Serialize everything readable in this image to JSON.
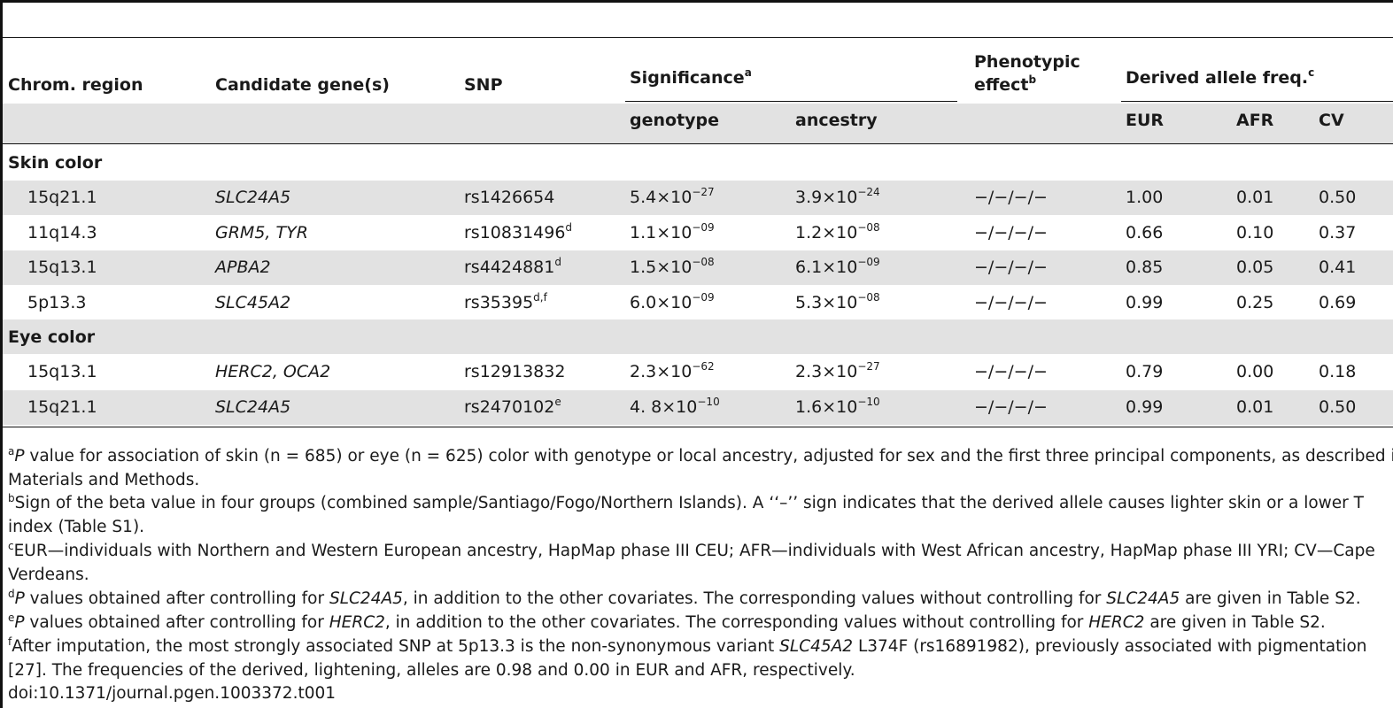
{
  "table": {
    "headers": {
      "chrom_region": "Chrom. region",
      "candidate_genes": "Candidate gene(s)",
      "snp": "SNP",
      "significance": "Significance",
      "significance_sup": "a",
      "phenotypic_line1": "Phenotypic",
      "phenotypic_line2": "effect",
      "phenotypic_sup": "b",
      "derived_allele": "Derived allele freq.",
      "derived_allele_sup": "c",
      "genotype": "genotype",
      "ancestry": "ancestry",
      "eur": "EUR",
      "afr": "AFR",
      "cv": "CV"
    },
    "sections": [
      {
        "title": "Skin color",
        "rows": [
          {
            "region": "15q21.1",
            "gene": "SLC24A5",
            "snp": "rs1426654",
            "snp_sup": "",
            "gen_mant": "5.4",
            "gen_exp": "−27",
            "anc_mant": "3.9",
            "anc_exp": "−24",
            "effect": "−/−/−/−",
            "eur": "1.00",
            "afr": "0.01",
            "cv": "0.50"
          },
          {
            "region": "11q14.3",
            "gene": "GRM5, TYR",
            "snp": "rs10831496",
            "snp_sup": "d",
            "gen_mant": "1.1",
            "gen_exp": "−09",
            "anc_mant": "1.2",
            "anc_exp": "−08",
            "effect": "−/−/−/−",
            "eur": "0.66",
            "afr": "0.10",
            "cv": "0.37"
          },
          {
            "region": "15q13.1",
            "gene": "APBA2",
            "snp": "rs4424881",
            "snp_sup": "d",
            "gen_mant": "1.5",
            "gen_exp": "−08",
            "anc_mant": "6.1",
            "anc_exp": "−09",
            "effect": "−/−/−/−",
            "eur": "0.85",
            "afr": "0.05",
            "cv": "0.41"
          },
          {
            "region": "5p13.3",
            "gene": "SLC45A2",
            "snp": "rs35395",
            "snp_sup": "d,f",
            "gen_mant": "6.0",
            "gen_exp": "−09",
            "anc_mant": "5.3",
            "anc_exp": "−08",
            "effect": "−/−/−/−",
            "eur": "0.99",
            "afr": "0.25",
            "cv": "0.69"
          }
        ]
      },
      {
        "title": "Eye color",
        "rows": [
          {
            "region": "15q13.1",
            "gene": "HERC2, OCA2",
            "snp": "rs12913832",
            "snp_sup": "",
            "gen_mant": "2.3",
            "gen_exp": "−62",
            "anc_mant": "2.3",
            "anc_exp": "−27",
            "effect": "−/−/−/−",
            "eur": "0.79",
            "afr": "0.00",
            "cv": "0.18"
          },
          {
            "region": "15q21.1",
            "gene": "SLC24A5",
            "snp": "rs2470102",
            "snp_sup": "e",
            "gen_mant": "4. 8",
            "gen_exp": "−10",
            "anc_mant": "1.6",
            "anc_exp": "−10",
            "effect": "−/−/−/−",
            "eur": "0.99",
            "afr": "0.01",
            "cv": "0.50"
          }
        ]
      }
    ],
    "times_base": "×10"
  },
  "footnotes": {
    "a": {
      "mark": "a",
      "lead": "P",
      "line1": " value for association of skin (n = 685) or eye (n = 625) color with genotype or local ancestry, adjusted for sex and the first three principal components, as described in",
      "line2": "Materials and Methods."
    },
    "b": {
      "mark": "b",
      "line1": "Sign of the beta value in four groups (combined sample/Santiago/Fogo/Northern Islands). A ‘‘–’’ sign indicates that the derived allele causes lighter skin or a lower T",
      "line2": "index (Table S1)."
    },
    "c": {
      "mark": "c",
      "line1": "EUR—individuals with Northern and Western European ancestry, HapMap phase III CEU; AFR—individuals with West African ancestry, HapMap phase III YRI; CV—Cape",
      "line2": "Verdeans."
    },
    "d": {
      "mark": "d",
      "lead": "P",
      "t1": " values obtained after controlling for ",
      "g1": "SLC24A5",
      "t2": ", in addition to the other covariates. The corresponding values without controlling for ",
      "g2": "SLC24A5",
      "t3": " are given in Table S2."
    },
    "e": {
      "mark": "e",
      "lead": "P",
      "t1": " values obtained after controlling for ",
      "g1": "HERC2",
      "t2": ", in addition to the other covariates. The corresponding values without controlling for ",
      "g2": "HERC2",
      "t3": " are given in Table S2."
    },
    "f": {
      "mark": "f",
      "t1": "After imputation, the most strongly associated SNP at 5p13.3 is the non-synonymous variant ",
      "g1": "SLC45A2",
      "t2": " L374F (rs16891982), previously associated with pigmentation",
      "line2": "[27]. The frequencies of the derived, lightening, alleles are 0.98 and 0.00 in EUR and AFR, respectively."
    },
    "doi": "doi:10.1371/journal.pgen.1003372.t001"
  }
}
